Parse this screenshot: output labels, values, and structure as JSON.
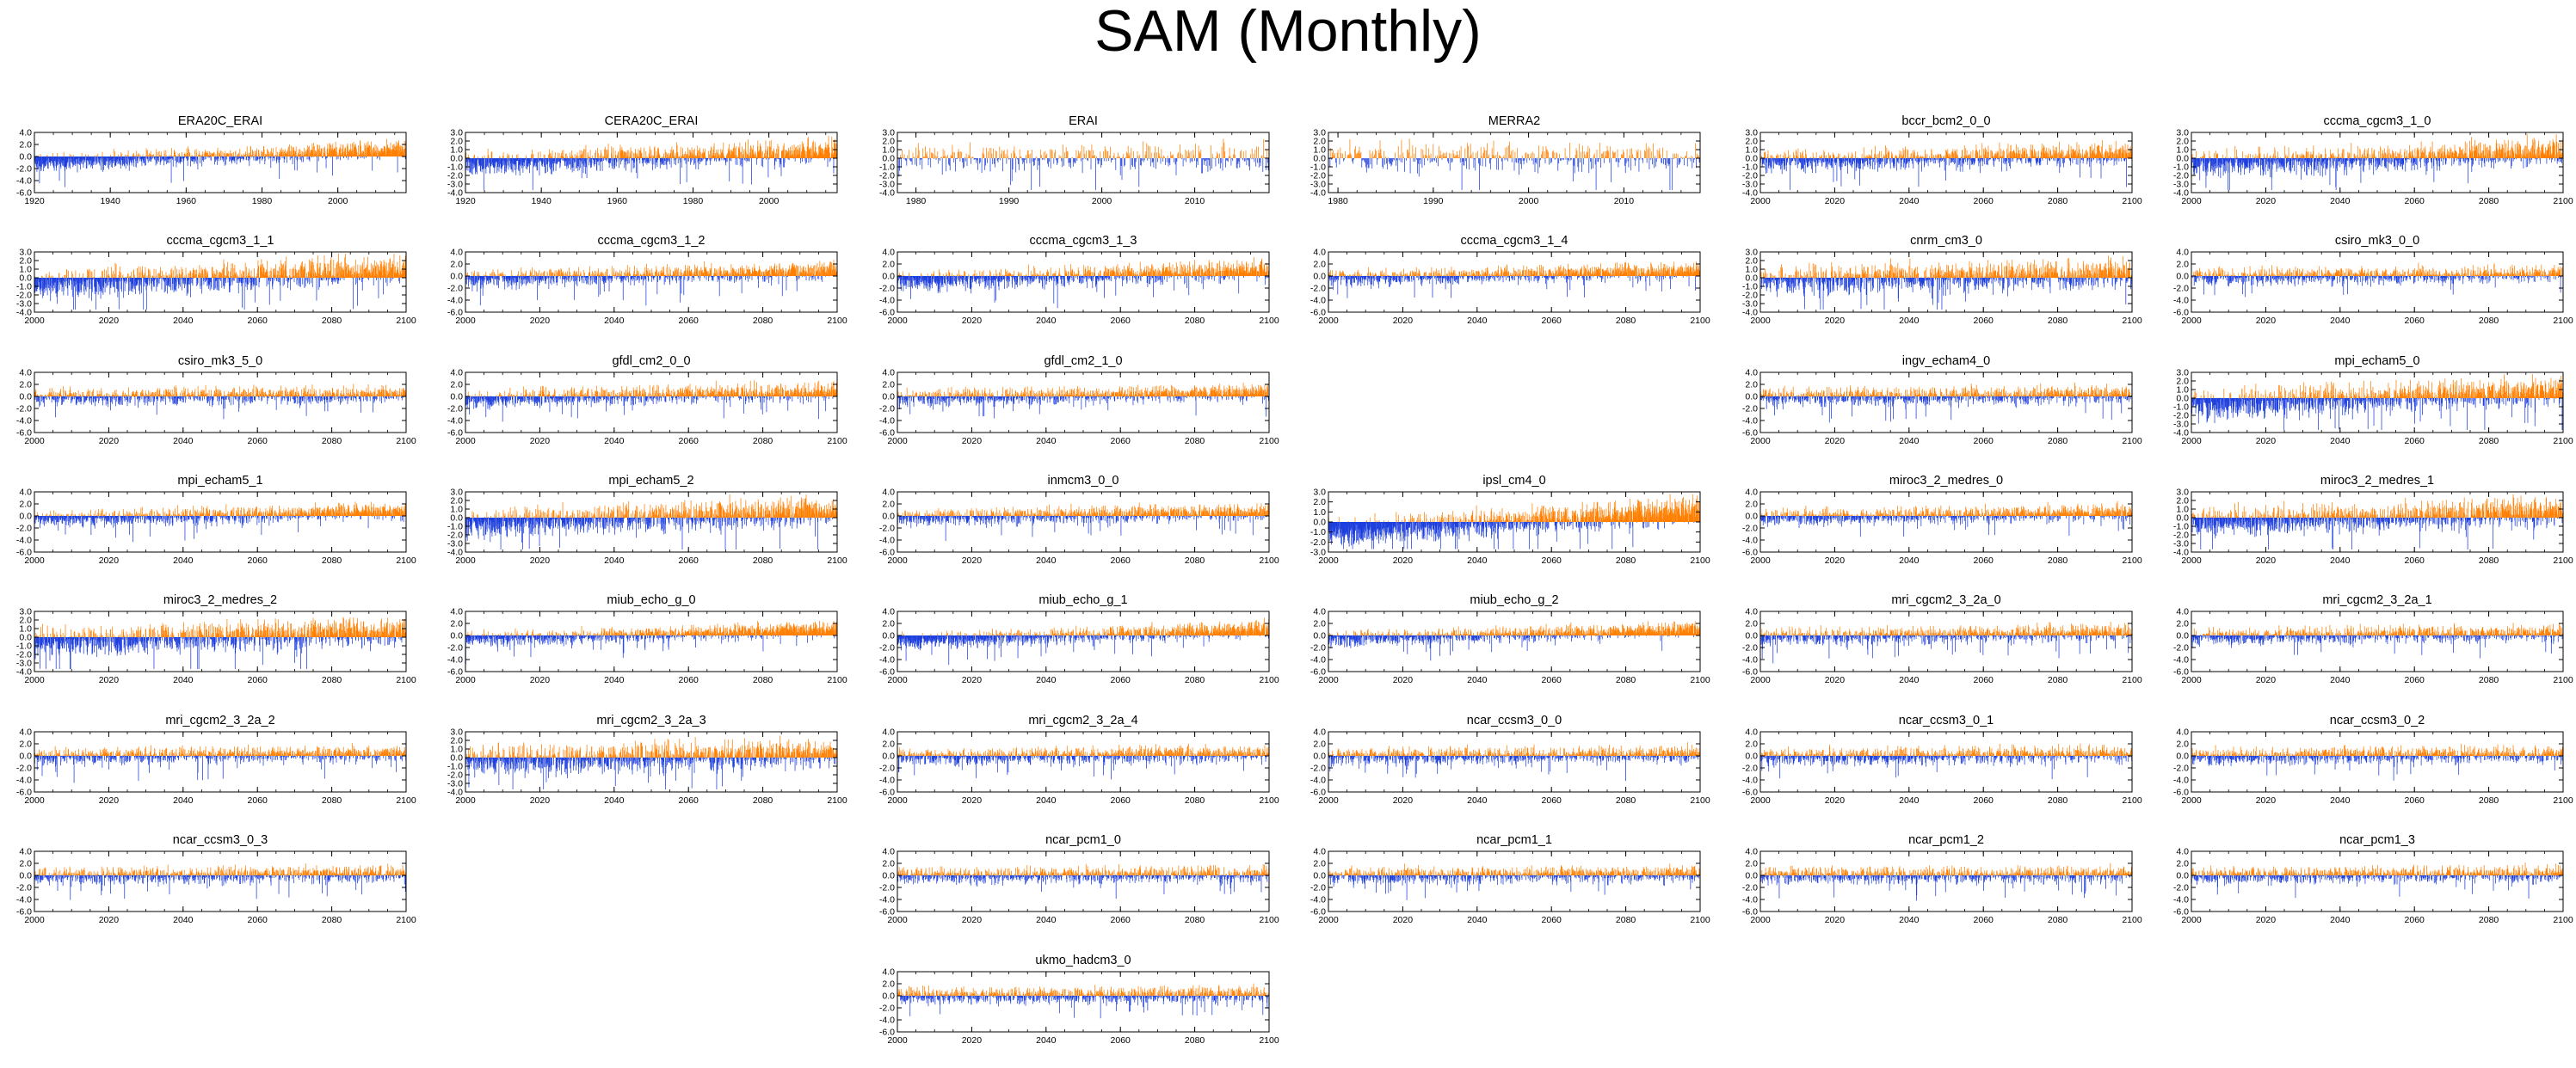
{
  "figure_title": "SAM (Monthly)",
  "colors": {
    "positive": "#ff7f00",
    "negative": "#1e3fdd",
    "axis": "#000000"
  },
  "chart_data": [
    {
      "type": "bar",
      "title": "ERA20C_ERAI",
      "x_range": [
        1920,
        2018
      ],
      "xticks": [
        1920,
        1940,
        1960,
        1980,
        2000
      ],
      "yticks": [
        4.0,
        2.0,
        0.0,
        -2.0,
        -4.0,
        -6.0
      ],
      "ylim": [
        -6,
        4
      ],
      "trend": [
        -1.2,
        1.2
      ],
      "amp": 1.1,
      "seed": 1
    },
    {
      "type": "bar",
      "title": "CERA20C_ERAI",
      "x_range": [
        1920,
        2018
      ],
      "xticks": [
        1920,
        1940,
        1960,
        1980,
        2000
      ],
      "yticks": [
        3.0,
        2.0,
        1.0,
        0.0,
        -1.0,
        -2.0,
        -3.0,
        -4.0
      ],
      "ylim": [
        -4,
        3
      ],
      "trend": [
        -0.8,
        0.9
      ],
      "amp": 1.0,
      "seed": 2
    },
    {
      "type": "bar",
      "title": "ERAI",
      "x_range": [
        1978,
        2018
      ],
      "xticks": [
        1980,
        1990,
        2000,
        2010
      ],
      "yticks": [
        3.0,
        2.0,
        1.0,
        0.0,
        -1.0,
        -2.0,
        -3.0,
        -4.0
      ],
      "ylim": [
        -4,
        3
      ],
      "trend": [
        0.0,
        0.1
      ],
      "amp": 1.2,
      "seed": 3
    },
    {
      "type": "bar",
      "title": "MERRA2",
      "x_range": [
        1979,
        2018
      ],
      "xticks": [
        1980,
        1990,
        2000,
        2010
      ],
      "yticks": [
        3.0,
        2.0,
        1.0,
        0.0,
        -1.0,
        -2.0,
        -3.0,
        -4.0
      ],
      "ylim": [
        -4,
        3
      ],
      "trend": [
        0.0,
        0.1
      ],
      "amp": 1.2,
      "seed": 4
    },
    {
      "type": "bar",
      "title": "bccr_bcm2_0_0",
      "x_range": [
        2000,
        2100
      ],
      "xticks": [
        2000,
        2020,
        2040,
        2060,
        2080,
        2100
      ],
      "yticks": [
        3.0,
        2.0,
        1.0,
        0.0,
        -1.0,
        -2.0,
        -3.0,
        -4.0
      ],
      "ylim": [
        -4,
        3
      ],
      "trend": [
        -0.4,
        0.5
      ],
      "amp": 0.9,
      "seed": 5
    },
    {
      "type": "bar",
      "title": "cccma_cgcm3_1_0",
      "x_range": [
        2000,
        2100
      ],
      "xticks": [
        2000,
        2020,
        2040,
        2060,
        2080,
        2100
      ],
      "yticks": [
        3.0,
        2.0,
        1.0,
        0.0,
        -1.0,
        -2.0,
        -3.0,
        -4.0
      ],
      "ylim": [
        -4,
        3
      ],
      "trend": [
        -0.8,
        0.8
      ],
      "amp": 1.1,
      "seed": 6
    },
    {
      "type": "bar",
      "title": "cccma_cgcm3_1_1",
      "x_range": [
        2000,
        2100
      ],
      "xticks": [
        2000,
        2020,
        2040,
        2060,
        2080,
        2100
      ],
      "yticks": [
        3.0,
        2.0,
        1.0,
        0.0,
        -1.0,
        -2.0,
        -3.0,
        -4.0
      ],
      "ylim": [
        -4,
        3
      ],
      "trend": [
        -0.9,
        1.0
      ],
      "amp": 1.2,
      "seed": 7
    },
    {
      "type": "bar",
      "title": "cccma_cgcm3_1_2",
      "x_range": [
        2000,
        2100
      ],
      "xticks": [
        2000,
        2020,
        2040,
        2060,
        2080,
        2100
      ],
      "yticks": [
        4.0,
        2.0,
        0.0,
        -2.0,
        -4.0,
        -6.0
      ],
      "ylim": [
        -6,
        4
      ],
      "trend": [
        -0.6,
        0.9
      ],
      "amp": 1.1,
      "seed": 8
    },
    {
      "type": "bar",
      "title": "cccma_cgcm3_1_3",
      "x_range": [
        2000,
        2100
      ],
      "xticks": [
        2000,
        2020,
        2040,
        2060,
        2080,
        2100
      ],
      "yticks": [
        4.0,
        2.0,
        0.0,
        -2.0,
        -4.0,
        -6.0
      ],
      "ylim": [
        -6,
        4
      ],
      "trend": [
        -1.0,
        1.0
      ],
      "amp": 1.2,
      "seed": 9
    },
    {
      "type": "bar",
      "title": "cccma_cgcm3_1_4",
      "x_range": [
        2000,
        2100
      ],
      "xticks": [
        2000,
        2020,
        2040,
        2060,
        2080,
        2100
      ],
      "yticks": [
        4.0,
        2.0,
        0.0,
        -2.0,
        -4.0,
        -6.0
      ],
      "ylim": [
        -6,
        4
      ],
      "trend": [
        -0.5,
        1.0
      ],
      "amp": 1.0,
      "seed": 10
    },
    {
      "type": "bar",
      "title": "cnrm_cm3_0",
      "x_range": [
        2000,
        2100
      ],
      "xticks": [
        2000,
        2020,
        2040,
        2060,
        2080,
        2100
      ],
      "yticks": [
        3.0,
        2.0,
        1.0,
        0.0,
        -1.0,
        -2.0,
        -3.0,
        -4.0
      ],
      "ylim": [
        -4,
        3
      ],
      "trend": [
        -0.4,
        0.5
      ],
      "amp": 1.2,
      "seed": 11
    },
    {
      "type": "bar",
      "title": "csiro_mk3_0_0",
      "x_range": [
        2000,
        2100
      ],
      "xticks": [
        2000,
        2020,
        2040,
        2060,
        2080,
        2100
      ],
      "yticks": [
        4.0,
        2.0,
        0.0,
        -2.0,
        -4.0,
        -6.0
      ],
      "ylim": [
        -6,
        4
      ],
      "trend": [
        -0.2,
        0.4
      ],
      "amp": 1.0,
      "seed": 12
    },
    {
      "type": "bar",
      "title": "csiro_mk3_5_0",
      "x_range": [
        2000,
        2100
      ],
      "xticks": [
        2000,
        2020,
        2040,
        2060,
        2080,
        2100
      ],
      "yticks": [
        4.0,
        2.0,
        0.0,
        -2.0,
        -4.0,
        -6.0
      ],
      "ylim": [
        -6,
        4
      ],
      "trend": [
        -0.2,
        0.4
      ],
      "amp": 1.0,
      "seed": 13
    },
    {
      "type": "bar",
      "title": "gfdl_cm2_0_0",
      "x_range": [
        2000,
        2100
      ],
      "xticks": [
        2000,
        2020,
        2040,
        2060,
        2080,
        2100
      ],
      "yticks": [
        4.0,
        2.0,
        0.0,
        -2.0,
        -4.0,
        -6.0
      ],
      "ylim": [
        -6,
        4
      ],
      "trend": [
        -0.5,
        0.8
      ],
      "amp": 1.1,
      "seed": 14
    },
    {
      "type": "bar",
      "title": "gfdl_cm2_1_0",
      "x_range": [
        2000,
        2100
      ],
      "xticks": [
        2000,
        2020,
        2040,
        2060,
        2080,
        2100
      ],
      "yticks": [
        4.0,
        2.0,
        0.0,
        -2.0,
        -4.0,
        -6.0
      ],
      "ylim": [
        -6,
        4
      ],
      "trend": [
        -0.4,
        0.8
      ],
      "amp": 1.0,
      "seed": 15
    },
    null,
    {
      "type": "bar",
      "title": "ingv_echam4_0",
      "x_range": [
        2000,
        2100
      ],
      "xticks": [
        2000,
        2020,
        2040,
        2060,
        2080,
        2100
      ],
      "yticks": [
        4.0,
        2.0,
        0.0,
        -2.0,
        -4.0,
        -6.0
      ],
      "ylim": [
        -6,
        4
      ],
      "trend": [
        -0.2,
        0.3
      ],
      "amp": 1.1,
      "seed": 16
    },
    {
      "type": "bar",
      "title": "mpi_echam5_0",
      "x_range": [
        2000,
        2100
      ],
      "xticks": [
        2000,
        2020,
        2040,
        2060,
        2080,
        2100
      ],
      "yticks": [
        3.0,
        2.0,
        1.0,
        0.0,
        -1.0,
        -2.0,
        -3.0,
        -4.0
      ],
      "ylim": [
        -4,
        3
      ],
      "trend": [
        -0.9,
        0.9
      ],
      "amp": 1.2,
      "seed": 17
    },
    {
      "type": "bar",
      "title": "mpi_echam5_1",
      "x_range": [
        2000,
        2100
      ],
      "xticks": [
        2000,
        2020,
        2040,
        2060,
        2080,
        2100
      ],
      "yticks": [
        4.0,
        2.0,
        0.0,
        -2.0,
        -4.0,
        -6.0
      ],
      "ylim": [
        -6,
        4
      ],
      "trend": [
        -0.6,
        0.8
      ],
      "amp": 1.0,
      "seed": 18
    },
    {
      "type": "bar",
      "title": "mpi_echam5_2",
      "x_range": [
        2000,
        2100
      ],
      "xticks": [
        2000,
        2020,
        2040,
        2060,
        2080,
        2100
      ],
      "yticks": [
        3.0,
        2.0,
        1.0,
        0.0,
        -1.0,
        -2.0,
        -3.0,
        -4.0
      ],
      "ylim": [
        -4,
        3
      ],
      "trend": [
        -0.8,
        0.8
      ],
      "amp": 1.2,
      "seed": 19
    },
    {
      "type": "bar",
      "title": "inmcm3_0_0",
      "x_range": [
        2000,
        2100
      ],
      "xticks": [
        2000,
        2020,
        2040,
        2060,
        2080,
        2100
      ],
      "yticks": [
        4.0,
        2.0,
        0.0,
        -2.0,
        -4.0,
        -6.0
      ],
      "ylim": [
        -6,
        4
      ],
      "trend": [
        -0.4,
        0.7
      ],
      "amp": 1.0,
      "seed": 20
    },
    {
      "type": "bar",
      "title": "ipsl_cm4_0",
      "x_range": [
        2000,
        2100
      ],
      "xticks": [
        2000,
        2020,
        2040,
        2060,
        2080,
        2100
      ],
      "yticks": [
        3.0,
        2.0,
        1.0,
        0.0,
        -1.0,
        -2.0,
        -3.0
      ],
      "ylim": [
        -3,
        3
      ],
      "trend": [
        -1.2,
        1.2
      ],
      "amp": 1.0,
      "seed": 21
    },
    {
      "type": "bar",
      "title": "miroc3_2_medres_0",
      "x_range": [
        2000,
        2100
      ],
      "xticks": [
        2000,
        2020,
        2040,
        2060,
        2080,
        2100
      ],
      "yticks": [
        4.0,
        2.0,
        0.0,
        -2.0,
        -4.0,
        -6.0
      ],
      "ylim": [
        -6,
        4
      ],
      "trend": [
        -0.4,
        0.6
      ],
      "amp": 1.0,
      "seed": 22
    },
    {
      "type": "bar",
      "title": "miroc3_2_medres_1",
      "x_range": [
        2000,
        2100
      ],
      "xticks": [
        2000,
        2020,
        2040,
        2060,
        2080,
        2100
      ],
      "yticks": [
        3.0,
        2.0,
        1.0,
        0.0,
        -1.0,
        -2.0,
        -3.0,
        -4.0
      ],
      "ylim": [
        -4,
        3
      ],
      "trend": [
        -0.6,
        0.7
      ],
      "amp": 1.2,
      "seed": 23
    },
    {
      "type": "bar",
      "title": "miroc3_2_medres_2",
      "x_range": [
        2000,
        2100
      ],
      "xticks": [
        2000,
        2020,
        2040,
        2060,
        2080,
        2100
      ],
      "yticks": [
        3.0,
        2.0,
        1.0,
        0.0,
        -1.0,
        -2.0,
        -3.0,
        -4.0
      ],
      "ylim": [
        -4,
        3
      ],
      "trend": [
        -0.7,
        0.8
      ],
      "amp": 1.2,
      "seed": 24
    },
    {
      "type": "bar",
      "title": "miub_echo_g_0",
      "x_range": [
        2000,
        2100
      ],
      "xticks": [
        2000,
        2020,
        2040,
        2060,
        2080,
        2100
      ],
      "yticks": [
        4.0,
        2.0,
        0.0,
        -2.0,
        -4.0,
        -6.0
      ],
      "ylim": [
        -6,
        4
      ],
      "trend": [
        -0.7,
        1.1
      ],
      "amp": 0.9,
      "seed": 25
    },
    {
      "type": "bar",
      "title": "miub_echo_g_1",
      "x_range": [
        2000,
        2100
      ],
      "xticks": [
        2000,
        2020,
        2040,
        2060,
        2080,
        2100
      ],
      "yticks": [
        4.0,
        2.0,
        0.0,
        -2.0,
        -4.0,
        -6.0
      ],
      "ylim": [
        -6,
        4
      ],
      "trend": [
        -1.1,
        1.1
      ],
      "amp": 1.0,
      "seed": 26
    },
    {
      "type": "bar",
      "title": "miub_echo_g_2",
      "x_range": [
        2000,
        2100
      ],
      "xticks": [
        2000,
        2020,
        2040,
        2060,
        2080,
        2100
      ],
      "yticks": [
        4.0,
        2.0,
        0.0,
        -2.0,
        -4.0,
        -6.0
      ],
      "ylim": [
        -6,
        4
      ],
      "trend": [
        -0.7,
        1.1
      ],
      "amp": 0.9,
      "seed": 27
    },
    {
      "type": "bar",
      "title": "mri_cgcm2_3_2a_0",
      "x_range": [
        2000,
        2100
      ],
      "xticks": [
        2000,
        2020,
        2040,
        2060,
        2080,
        2100
      ],
      "yticks": [
        4.0,
        2.0,
        0.0,
        -2.0,
        -4.0,
        -6.0
      ],
      "ylim": [
        -6,
        4
      ],
      "trend": [
        -0.3,
        0.5
      ],
      "amp": 1.0,
      "seed": 28
    },
    {
      "type": "bar",
      "title": "mri_cgcm2_3_2a_1",
      "x_range": [
        2000,
        2100
      ],
      "xticks": [
        2000,
        2020,
        2040,
        2060,
        2080,
        2100
      ],
      "yticks": [
        4.0,
        2.0,
        0.0,
        -2.0,
        -4.0,
        -6.0
      ],
      "ylim": [
        -6,
        4
      ],
      "trend": [
        -0.3,
        0.5
      ],
      "amp": 1.0,
      "seed": 29
    },
    {
      "type": "bar",
      "title": "mri_cgcm2_3_2a_2",
      "x_range": [
        2000,
        2100
      ],
      "xticks": [
        2000,
        2020,
        2040,
        2060,
        2080,
        2100
      ],
      "yticks": [
        4.0,
        2.0,
        0.0,
        -2.0,
        -4.0,
        -6.0
      ],
      "ylim": [
        -6,
        4
      ],
      "trend": [
        -0.2,
        0.4
      ],
      "amp": 1.0,
      "seed": 30
    },
    {
      "type": "bar",
      "title": "mri_cgcm2_3_2a_3",
      "x_range": [
        2000,
        2100
      ],
      "xticks": [
        2000,
        2020,
        2040,
        2060,
        2080,
        2100
      ],
      "yticks": [
        3.0,
        2.0,
        1.0,
        0.0,
        -1.0,
        -2.0,
        -3.0,
        -4.0
      ],
      "ylim": [
        -4,
        3
      ],
      "trend": [
        -0.5,
        0.6
      ],
      "amp": 1.2,
      "seed": 31
    },
    {
      "type": "bar",
      "title": "mri_cgcm2_3_2a_4",
      "x_range": [
        2000,
        2100
      ],
      "xticks": [
        2000,
        2020,
        2040,
        2060,
        2080,
        2100
      ],
      "yticks": [
        4.0,
        2.0,
        0.0,
        -2.0,
        -4.0,
        -6.0
      ],
      "ylim": [
        -6,
        4
      ],
      "trend": [
        -0.2,
        0.4
      ],
      "amp": 1.0,
      "seed": 32
    },
    {
      "type": "bar",
      "title": "ncar_ccsm3_0_0",
      "x_range": [
        2000,
        2100
      ],
      "xticks": [
        2000,
        2020,
        2040,
        2060,
        2080,
        2100
      ],
      "yticks": [
        4.0,
        2.0,
        0.0,
        -2.0,
        -4.0,
        -6.0
      ],
      "ylim": [
        -6,
        4
      ],
      "trend": [
        -0.2,
        0.3
      ],
      "amp": 1.0,
      "seed": 33
    },
    {
      "type": "bar",
      "title": "ncar_ccsm3_0_1",
      "x_range": [
        2000,
        2100
      ],
      "xticks": [
        2000,
        2020,
        2040,
        2060,
        2080,
        2100
      ],
      "yticks": [
        4.0,
        2.0,
        0.0,
        -2.0,
        -4.0,
        -6.0
      ],
      "ylim": [
        -6,
        4
      ],
      "trend": [
        -0.2,
        0.3
      ],
      "amp": 1.0,
      "seed": 34
    },
    {
      "type": "bar",
      "title": "ncar_ccsm3_0_2",
      "x_range": [
        2000,
        2100
      ],
      "xticks": [
        2000,
        2020,
        2040,
        2060,
        2080,
        2100
      ],
      "yticks": [
        4.0,
        2.0,
        0.0,
        -2.0,
        -4.0,
        -6.0
      ],
      "ylim": [
        -6,
        4
      ],
      "trend": [
        -0.2,
        0.3
      ],
      "amp": 1.0,
      "seed": 35
    },
    {
      "type": "bar",
      "title": "ncar_ccsm3_0_3",
      "x_range": [
        2000,
        2100
      ],
      "xticks": [
        2000,
        2020,
        2040,
        2060,
        2080,
        2100
      ],
      "yticks": [
        4.0,
        2.0,
        0.0,
        -2.0,
        -4.0,
        -6.0
      ],
      "ylim": [
        -6,
        4
      ],
      "trend": [
        -0.2,
        0.3
      ],
      "amp": 1.0,
      "seed": 36
    },
    null,
    {
      "type": "bar",
      "title": "ncar_pcm1_0",
      "x_range": [
        2000,
        2100
      ],
      "xticks": [
        2000,
        2020,
        2040,
        2060,
        2080,
        2100
      ],
      "yticks": [
        4.0,
        2.0,
        0.0,
        -2.0,
        -4.0,
        -6.0
      ],
      "ylim": [
        -6,
        4
      ],
      "trend": [
        -0.1,
        0.2
      ],
      "amp": 1.0,
      "seed": 37
    },
    {
      "type": "bar",
      "title": "ncar_pcm1_1",
      "x_range": [
        2000,
        2100
      ],
      "xticks": [
        2000,
        2020,
        2040,
        2060,
        2080,
        2100
      ],
      "yticks": [
        4.0,
        2.0,
        0.0,
        -2.0,
        -4.0,
        -6.0
      ],
      "ylim": [
        -6,
        4
      ],
      "trend": [
        -0.1,
        0.2
      ],
      "amp": 1.0,
      "seed": 38
    },
    {
      "type": "bar",
      "title": "ncar_pcm1_2",
      "x_range": [
        2000,
        2100
      ],
      "xticks": [
        2000,
        2020,
        2040,
        2060,
        2080,
        2100
      ],
      "yticks": [
        4.0,
        2.0,
        0.0,
        -2.0,
        -4.0,
        -6.0
      ],
      "ylim": [
        -6,
        4
      ],
      "trend": [
        -0.1,
        0.2
      ],
      "amp": 1.0,
      "seed": 39
    },
    {
      "type": "bar",
      "title": "ncar_pcm1_3",
      "x_range": [
        2000,
        2100
      ],
      "xticks": [
        2000,
        2020,
        2040,
        2060,
        2080,
        2100
      ],
      "yticks": [
        4.0,
        2.0,
        0.0,
        -2.0,
        -4.0,
        -6.0
      ],
      "ylim": [
        -6,
        4
      ],
      "trend": [
        -0.1,
        0.2
      ],
      "amp": 1.0,
      "seed": 40
    },
    null,
    null,
    {
      "type": "bar",
      "title": "ukmo_hadcm3_0",
      "x_range": [
        2000,
        2100
      ],
      "xticks": [
        2000,
        2020,
        2040,
        2060,
        2080,
        2100
      ],
      "yticks": [
        4.0,
        2.0,
        0.0,
        -2.0,
        -4.0,
        -6.0
      ],
      "ylim": [
        -6,
        4
      ],
      "trend": [
        -0.1,
        0.2
      ],
      "amp": 1.0,
      "seed": 41
    },
    null,
    null,
    null
  ]
}
